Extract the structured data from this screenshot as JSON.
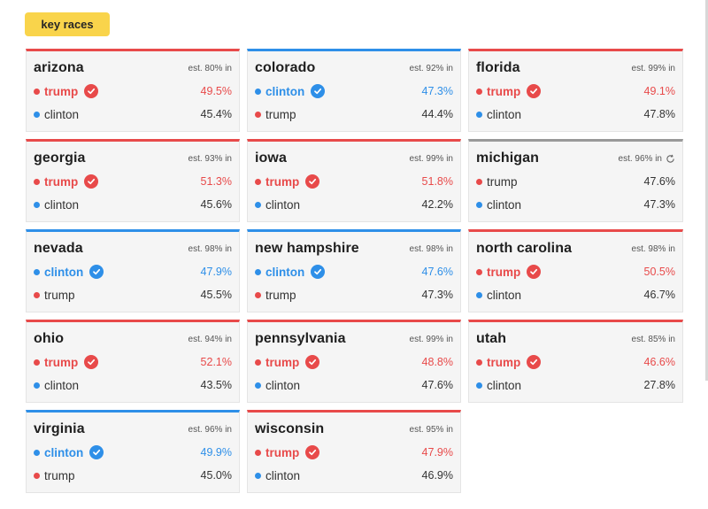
{
  "header": {
    "label": "key races"
  },
  "colors": {
    "red": "#e84a4a",
    "blue": "#2e8fe8",
    "pending": "#999999",
    "badge": "#f9d44b"
  },
  "races": [
    {
      "state": "arizona",
      "est": "est. 80% in",
      "status": "red",
      "rows": [
        {
          "name": "trump",
          "party": "red",
          "pct": "49.5%",
          "winner": true
        },
        {
          "name": "clinton",
          "party": "blue",
          "pct": "45.4%",
          "winner": false
        }
      ]
    },
    {
      "state": "colorado",
      "est": "est. 92% in",
      "status": "blue",
      "rows": [
        {
          "name": "clinton",
          "party": "blue",
          "pct": "47.3%",
          "winner": true
        },
        {
          "name": "trump",
          "party": "red",
          "pct": "44.4%",
          "winner": false
        }
      ]
    },
    {
      "state": "florida",
      "est": "est. 99% in",
      "status": "red",
      "rows": [
        {
          "name": "trump",
          "party": "red",
          "pct": "49.1%",
          "winner": true
        },
        {
          "name": "clinton",
          "party": "blue",
          "pct": "47.8%",
          "winner": false
        }
      ]
    },
    {
      "state": "georgia",
      "est": "est. 93% in",
      "status": "red",
      "rows": [
        {
          "name": "trump",
          "party": "red",
          "pct": "51.3%",
          "winner": true
        },
        {
          "name": "clinton",
          "party": "blue",
          "pct": "45.6%",
          "winner": false
        }
      ]
    },
    {
      "state": "iowa",
      "est": "est. 99% in",
      "status": "red",
      "rows": [
        {
          "name": "trump",
          "party": "red",
          "pct": "51.8%",
          "winner": true
        },
        {
          "name": "clinton",
          "party": "blue",
          "pct": "42.2%",
          "winner": false
        }
      ]
    },
    {
      "state": "michigan",
      "est": "est. 96% in",
      "status": "gray",
      "pending": true,
      "rows": [
        {
          "name": "trump",
          "party": "red",
          "pct": "47.6%",
          "winner": false
        },
        {
          "name": "clinton",
          "party": "blue",
          "pct": "47.3%",
          "winner": false
        }
      ]
    },
    {
      "state": "nevada",
      "est": "est. 98% in",
      "status": "blue",
      "rows": [
        {
          "name": "clinton",
          "party": "blue",
          "pct": "47.9%",
          "winner": true
        },
        {
          "name": "trump",
          "party": "red",
          "pct": "45.5%",
          "winner": false
        }
      ]
    },
    {
      "state": "new hampshire",
      "est": "est. 98% in",
      "status": "blue",
      "rows": [
        {
          "name": "clinton",
          "party": "blue",
          "pct": "47.6%",
          "winner": true
        },
        {
          "name": "trump",
          "party": "red",
          "pct": "47.3%",
          "winner": false
        }
      ]
    },
    {
      "state": "north carolina",
      "est": "est. 98% in",
      "status": "red",
      "rows": [
        {
          "name": "trump",
          "party": "red",
          "pct": "50.5%",
          "winner": true
        },
        {
          "name": "clinton",
          "party": "blue",
          "pct": "46.7%",
          "winner": false
        }
      ]
    },
    {
      "state": "ohio",
      "est": "est. 94% in",
      "status": "red",
      "rows": [
        {
          "name": "trump",
          "party": "red",
          "pct": "52.1%",
          "winner": true
        },
        {
          "name": "clinton",
          "party": "blue",
          "pct": "43.5%",
          "winner": false
        }
      ]
    },
    {
      "state": "pennsylvania",
      "est": "est. 99% in",
      "status": "red",
      "rows": [
        {
          "name": "trump",
          "party": "red",
          "pct": "48.8%",
          "winner": true
        },
        {
          "name": "clinton",
          "party": "blue",
          "pct": "47.6%",
          "winner": false
        }
      ]
    },
    {
      "state": "utah",
      "est": "est. 85% in",
      "status": "red",
      "rows": [
        {
          "name": "trump",
          "party": "red",
          "pct": "46.6%",
          "winner": true
        },
        {
          "name": "clinton",
          "party": "blue",
          "pct": "27.8%",
          "winner": false
        }
      ]
    },
    {
      "state": "virginia",
      "est": "est. 96% in",
      "status": "blue",
      "rows": [
        {
          "name": "clinton",
          "party": "blue",
          "pct": "49.9%",
          "winner": true
        },
        {
          "name": "trump",
          "party": "red",
          "pct": "45.0%",
          "winner": false
        }
      ]
    },
    {
      "state": "wisconsin",
      "est": "est. 95% in",
      "status": "red",
      "rows": [
        {
          "name": "trump",
          "party": "red",
          "pct": "47.9%",
          "winner": true
        },
        {
          "name": "clinton",
          "party": "blue",
          "pct": "46.9%",
          "winner": false
        }
      ]
    }
  ]
}
